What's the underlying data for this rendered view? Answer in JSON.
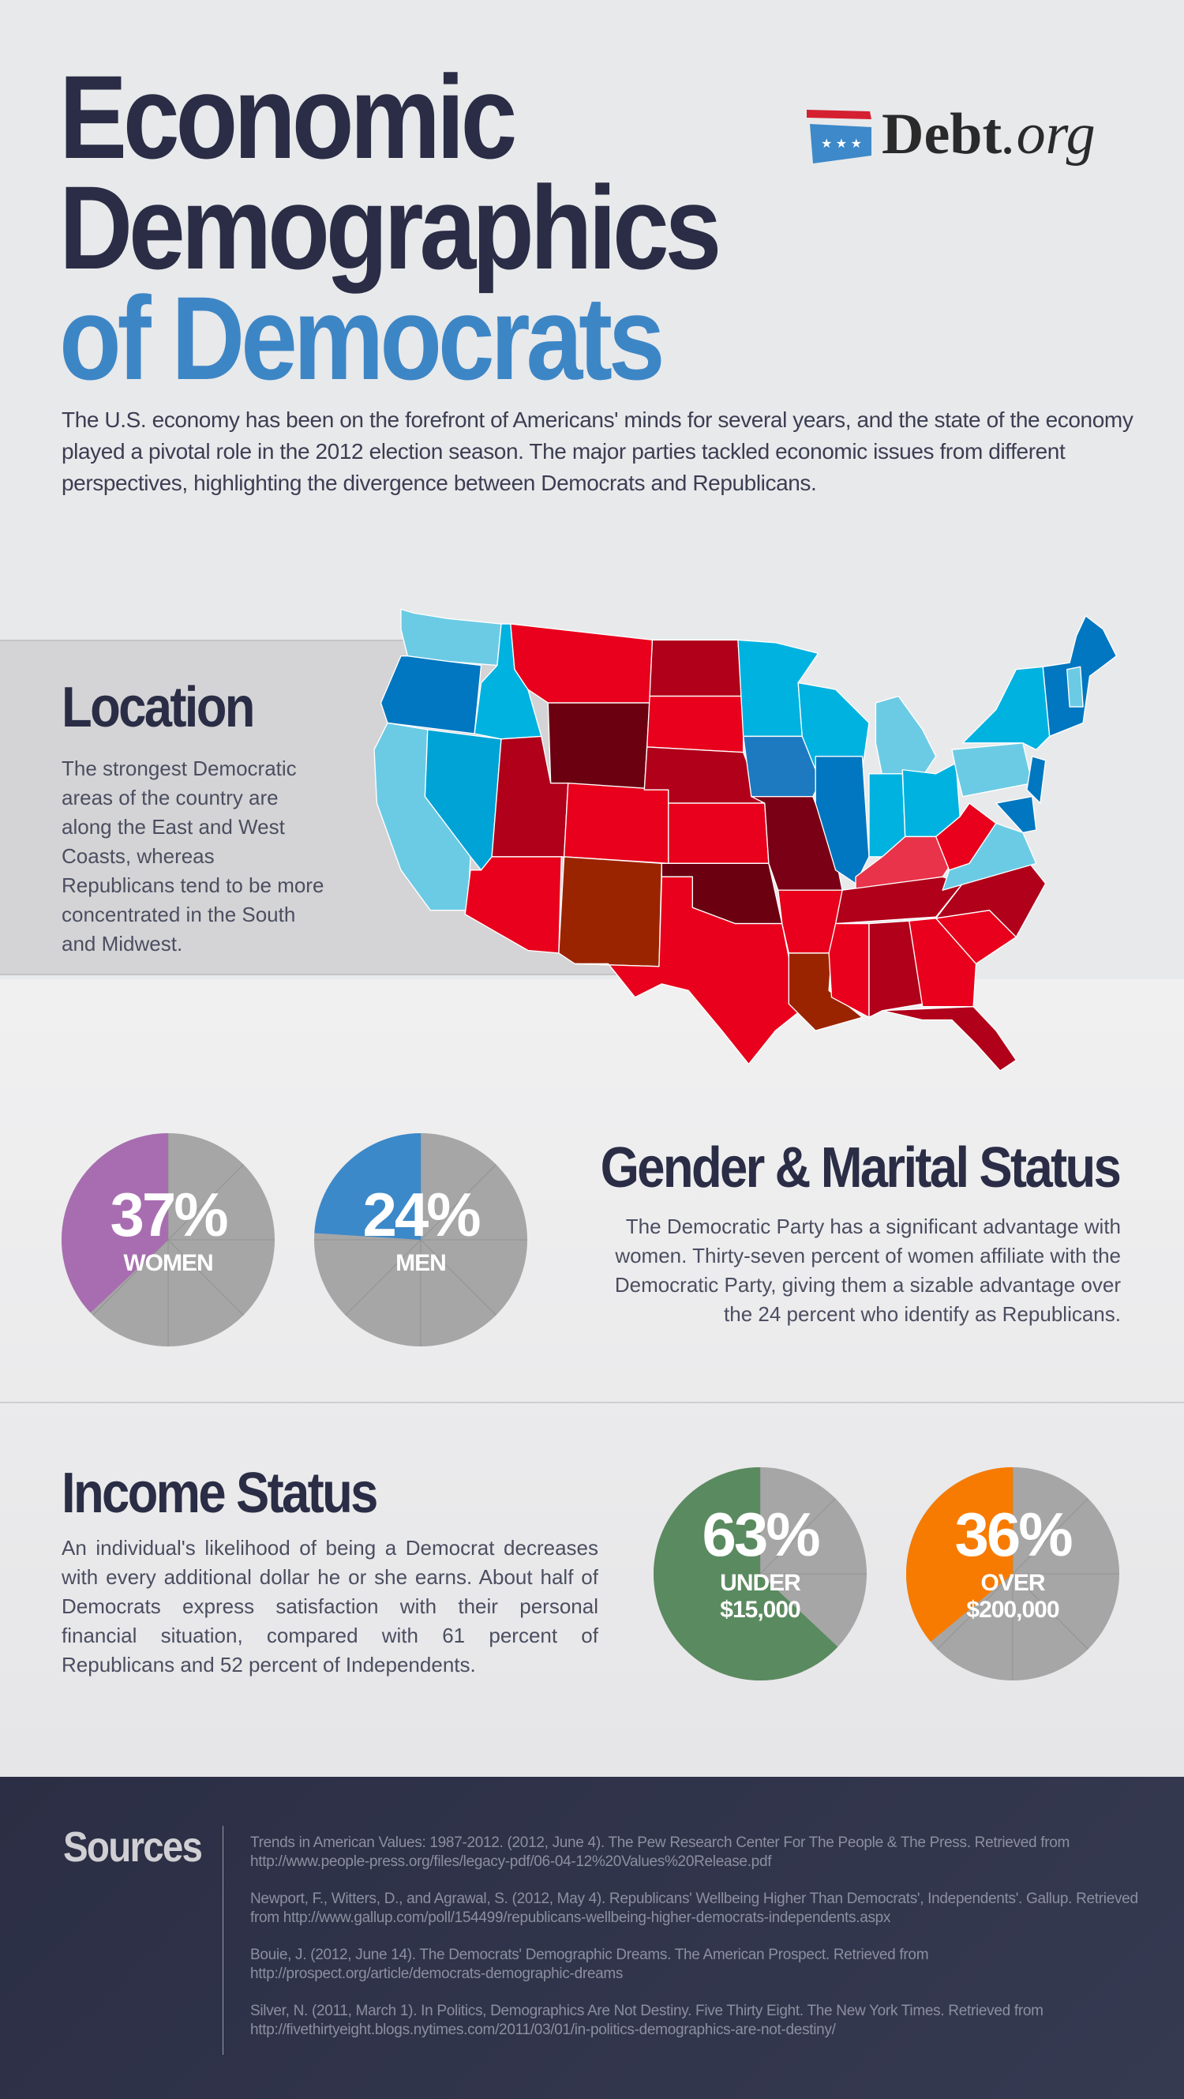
{
  "header": {
    "title_lines": [
      "Economic",
      "Demographics",
      "of Democrats"
    ],
    "logo": {
      "brand": "Debt",
      "suffix": ".org"
    },
    "intro": "The U.S. economy has been on the forefront of Americans' minds for several years, and the state of the economy played a pivotal role in the 2012 election season. The major parties tackled economic issues from different perspectives, highlighting the divergence between Democrats and Republicans."
  },
  "location": {
    "heading": "Location",
    "text": "The strongest Democratic areas of the country are along the East and West Coasts, whereas Republicans tend to be more concentrated in the South and Midwest."
  },
  "gender": {
    "heading": "Gender & Marital Status",
    "text": "The Democratic Party has a significant advantage with women. Thirty-seven percent of women affiliate with the Democratic Party, giving them a sizable advantage over the 24 percent who identify as Republicans.",
    "pies": [
      {
        "value_label": "37%",
        "label": "WOMEN",
        "value": 37,
        "color": "#a86db0"
      },
      {
        "value_label": "24%",
        "label": "MEN",
        "value": 24,
        "color": "#3c89c9"
      }
    ]
  },
  "income": {
    "heading": "Income Status",
    "text": "An individual's likelihood of being a Democrat decreases with every additional dollar he or she earns. About half of Democrats express satisfaction with their personal financial situation, compared with 61 percent of Republicans and 52 percent of Independents.",
    "pies": [
      {
        "value_label": "63%",
        "label": "UNDER",
        "label2": "$15,000",
        "value": 63,
        "color": "#5a8a5f"
      },
      {
        "value_label": "36%",
        "label": "OVER",
        "label2": "$200,000",
        "value": 36,
        "color": "#f77b00"
      }
    ]
  },
  "sources": {
    "heading": "Sources",
    "items": [
      "Trends in American Values: 1987-2012. (2012, June 4). The Pew Research Center For The People & The Press. Retrieved from http://www.people-press.org/files/legacy-pdf/06-04-12%20Values%20Release.pdf",
      "Newport, F., Witters, D., and Agrawal, S. (2012, May 4). Republicans' Wellbeing Higher Than Democrats', Independents'. Gallup. Retrieved from http://www.gallup.com/poll/154499/republicans-wellbeing-higher-democrats-independents.aspx",
      "Bouie, J. (2012, June 14). The Democrats' Demographic Dreams. The American Prospect. Retrieved from http://prospect.org/article/democrats-demographic-dreams",
      "Silver, N. (2011, March 1). In Politics, Demographics Are Not Destiny. Five Thirty Eight. The New York Times. Retrieved from http://fivethirtyeight.blogs.nytimes.com/2011/03/01/in-politics-demographics-are-not-destiny/"
    ]
  },
  "colors": {
    "pie_gray": "#a6a6a6",
    "navy": "#2a2d45",
    "accent_blue": "#3d86c6"
  }
}
